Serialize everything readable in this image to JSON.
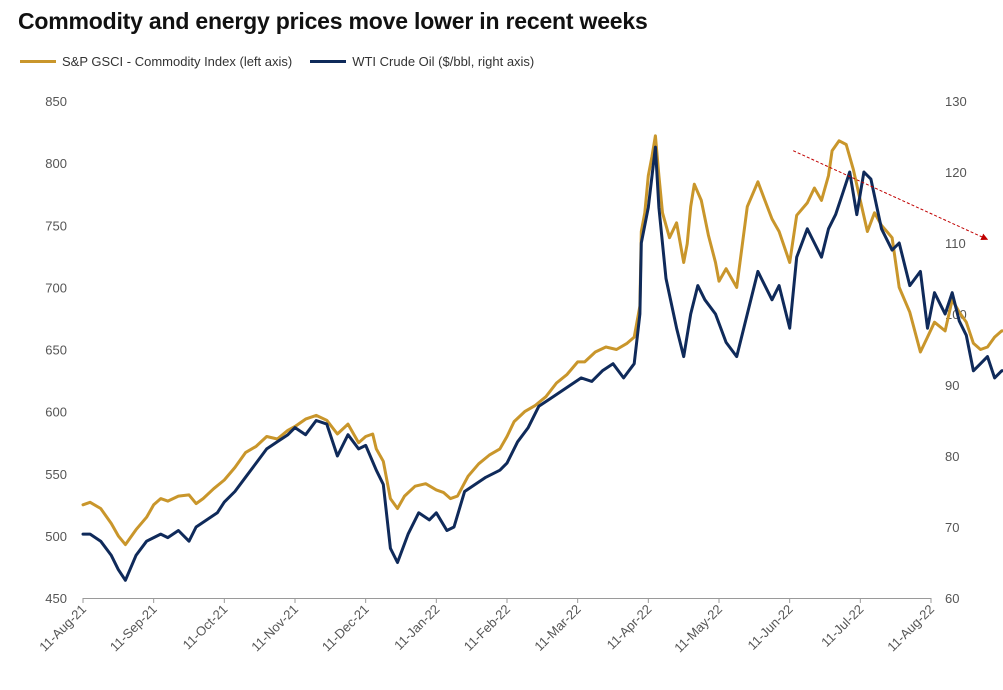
{
  "chart_data": {
    "type": "line",
    "title": "Commodity and  energy prices move lower in recent weeks",
    "x_ticks": [
      "11-Aug-21",
      "11-Sep-21",
      "11-Oct-21",
      "11-Nov-21",
      "11-Dec-21",
      "11-Jan-22",
      "11-Feb-22",
      "11-Mar-22",
      "11-Apr-22",
      "11-May-22",
      "11-Jun-22",
      "11-Jul-22",
      "11-Aug-22"
    ],
    "y_left": {
      "min": 450,
      "max": 850,
      "ticks": [
        450,
        500,
        550,
        600,
        650,
        700,
        750,
        800,
        850
      ]
    },
    "y_right": {
      "min": 60,
      "max": 130,
      "ticks": [
        60,
        70,
        80,
        90,
        100,
        110,
        120,
        130
      ]
    },
    "grid": false,
    "legend_position": "top-left",
    "x_unit": "month index (0 = 11-Aug-21)",
    "series": [
      {
        "name": "S&P GSCI - Commodity Index (left axis)",
        "axis": "left",
        "color": "#C9962B",
        "points": [
          [
            0,
            525
          ],
          [
            0.1,
            527
          ],
          [
            0.25,
            522
          ],
          [
            0.4,
            510
          ],
          [
            0.5,
            500
          ],
          [
            0.6,
            493
          ],
          [
            0.75,
            505
          ],
          [
            0.9,
            515
          ],
          [
            1.0,
            525
          ],
          [
            1.1,
            530
          ],
          [
            1.2,
            528
          ],
          [
            1.35,
            532
          ],
          [
            1.5,
            533
          ],
          [
            1.6,
            526
          ],
          [
            1.7,
            530
          ],
          [
            1.85,
            538
          ],
          [
            2.0,
            545
          ],
          [
            2.15,
            555
          ],
          [
            2.3,
            567
          ],
          [
            2.45,
            572
          ],
          [
            2.6,
            580
          ],
          [
            2.75,
            578
          ],
          [
            2.9,
            585
          ],
          [
            3.0,
            588
          ],
          [
            3.15,
            594
          ],
          [
            3.3,
            597
          ],
          [
            3.45,
            593
          ],
          [
            3.6,
            582
          ],
          [
            3.75,
            590
          ],
          [
            3.9,
            575
          ],
          [
            4.0,
            580
          ],
          [
            4.1,
            582
          ],
          [
            4.15,
            570
          ],
          [
            4.25,
            560
          ],
          [
            4.35,
            530
          ],
          [
            4.45,
            522
          ],
          [
            4.55,
            532
          ],
          [
            4.7,
            540
          ],
          [
            4.85,
            542
          ],
          [
            5.0,
            537
          ],
          [
            5.1,
            535
          ],
          [
            5.2,
            530
          ],
          [
            5.3,
            532
          ],
          [
            5.45,
            548
          ],
          [
            5.6,
            558
          ],
          [
            5.75,
            565
          ],
          [
            5.9,
            570
          ],
          [
            6.0,
            580
          ],
          [
            6.1,
            592
          ],
          [
            6.25,
            600
          ],
          [
            6.4,
            605
          ],
          [
            6.55,
            612
          ],
          [
            6.7,
            623
          ],
          [
            6.85,
            630
          ],
          [
            7.0,
            640
          ],
          [
            7.1,
            640
          ],
          [
            7.25,
            648
          ],
          [
            7.4,
            652
          ],
          [
            7.55,
            650
          ],
          [
            7.7,
            655
          ],
          [
            7.8,
            660
          ],
          [
            7.88,
            685
          ],
          [
            7.9,
            745
          ],
          [
            7.95,
            760
          ],
          [
            8.0,
            790
          ],
          [
            8.05,
            805
          ],
          [
            8.1,
            822
          ],
          [
            8.15,
            790
          ],
          [
            8.2,
            760
          ],
          [
            8.3,
            740
          ],
          [
            8.4,
            752
          ],
          [
            8.5,
            720
          ],
          [
            8.55,
            735
          ],
          [
            8.6,
            765
          ],
          [
            8.65,
            783
          ],
          [
            8.75,
            770
          ],
          [
            8.85,
            742
          ],
          [
            8.95,
            720
          ],
          [
            9.0,
            705
          ],
          [
            9.1,
            715
          ],
          [
            9.25,
            700
          ],
          [
            9.4,
            765
          ],
          [
            9.55,
            785
          ],
          [
            9.65,
            770
          ],
          [
            9.75,
            755
          ],
          [
            9.85,
            745
          ],
          [
            10.0,
            720
          ],
          [
            10.1,
            758
          ],
          [
            10.25,
            768
          ],
          [
            10.35,
            780
          ],
          [
            10.45,
            770
          ],
          [
            10.55,
            790
          ],
          [
            10.6,
            810
          ],
          [
            10.7,
            818
          ],
          [
            10.8,
            815
          ],
          [
            10.9,
            795
          ],
          [
            11.0,
            770
          ],
          [
            11.1,
            745
          ],
          [
            11.2,
            760
          ],
          [
            11.3,
            750
          ],
          [
            11.45,
            740
          ],
          [
            11.55,
            700
          ],
          [
            11.7,
            680
          ],
          [
            11.85,
            648
          ],
          [
            11.95,
            660
          ],
          [
            12.05,
            672
          ],
          [
            12.2,
            665
          ],
          [
            12.3,
            690
          ],
          [
            12.4,
            680
          ],
          [
            12.5,
            672
          ],
          [
            12.6,
            655
          ],
          [
            12.7,
            650
          ],
          [
            12.8,
            652
          ],
          [
            12.9,
            660
          ],
          [
            13.0,
            665
          ],
          [
            13.05,
            665
          ]
        ]
      },
      {
        "name": "WTI Crude Oil ($/bbl, right axis)",
        "axis": "right",
        "color": "#0F2A5A",
        "points": [
          [
            0,
            69
          ],
          [
            0.1,
            69
          ],
          [
            0.25,
            68
          ],
          [
            0.4,
            66
          ],
          [
            0.5,
            64
          ],
          [
            0.6,
            62.5
          ],
          [
            0.75,
            66
          ],
          [
            0.9,
            68
          ],
          [
            1.0,
            68.5
          ],
          [
            1.1,
            69
          ],
          [
            1.2,
            68.5
          ],
          [
            1.35,
            69.5
          ],
          [
            1.5,
            68
          ],
          [
            1.6,
            70
          ],
          [
            1.75,
            71
          ],
          [
            1.9,
            72
          ],
          [
            2.0,
            73.5
          ],
          [
            2.15,
            75
          ],
          [
            2.3,
            77
          ],
          [
            2.45,
            79
          ],
          [
            2.6,
            81
          ],
          [
            2.75,
            82
          ],
          [
            2.9,
            83
          ],
          [
            3.0,
            84
          ],
          [
            3.15,
            83
          ],
          [
            3.3,
            85
          ],
          [
            3.45,
            84.5
          ],
          [
            3.6,
            80
          ],
          [
            3.75,
            83
          ],
          [
            3.9,
            81
          ],
          [
            4.0,
            81.5
          ],
          [
            4.15,
            78
          ],
          [
            4.25,
            76
          ],
          [
            4.35,
            67
          ],
          [
            4.45,
            65
          ],
          [
            4.6,
            69
          ],
          [
            4.75,
            72
          ],
          [
            4.9,
            71
          ],
          [
            5.0,
            72
          ],
          [
            5.15,
            69.5
          ],
          [
            5.25,
            70
          ],
          [
            5.4,
            75
          ],
          [
            5.55,
            76
          ],
          [
            5.7,
            77
          ],
          [
            5.9,
            78
          ],
          [
            6.0,
            79
          ],
          [
            6.15,
            82
          ],
          [
            6.3,
            84
          ],
          [
            6.45,
            87
          ],
          [
            6.6,
            88
          ],
          [
            6.75,
            89
          ],
          [
            6.9,
            90
          ],
          [
            7.05,
            91
          ],
          [
            7.2,
            90.5
          ],
          [
            7.35,
            92
          ],
          [
            7.5,
            93
          ],
          [
            7.65,
            91
          ],
          [
            7.8,
            93
          ],
          [
            7.88,
            100
          ],
          [
            7.9,
            110
          ],
          [
            8.0,
            115
          ],
          [
            8.1,
            123.5
          ],
          [
            8.15,
            115
          ],
          [
            8.25,
            105
          ],
          [
            8.4,
            98
          ],
          [
            8.5,
            94
          ],
          [
            8.6,
            100
          ],
          [
            8.7,
            104
          ],
          [
            8.8,
            102
          ],
          [
            8.95,
            100
          ],
          [
            9.1,
            96
          ],
          [
            9.25,
            94
          ],
          [
            9.4,
            100
          ],
          [
            9.55,
            106
          ],
          [
            9.65,
            104
          ],
          [
            9.75,
            102
          ],
          [
            9.85,
            104
          ],
          [
            10.0,
            98
          ],
          [
            10.1,
            108
          ],
          [
            10.25,
            112
          ],
          [
            10.35,
            110
          ],
          [
            10.45,
            108
          ],
          [
            10.55,
            112
          ],
          [
            10.65,
            114
          ],
          [
            10.75,
            117
          ],
          [
            10.85,
            120
          ],
          [
            10.95,
            114
          ],
          [
            11.05,
            120
          ],
          [
            11.15,
            119
          ],
          [
            11.3,
            112
          ],
          [
            11.45,
            109
          ],
          [
            11.55,
            110
          ],
          [
            11.7,
            104
          ],
          [
            11.85,
            106
          ],
          [
            11.95,
            98
          ],
          [
            12.05,
            103
          ],
          [
            12.2,
            100
          ],
          [
            12.3,
            103
          ],
          [
            12.4,
            99
          ],
          [
            12.5,
            97
          ],
          [
            12.6,
            92
          ],
          [
            12.7,
            93
          ],
          [
            12.8,
            94
          ],
          [
            12.9,
            91
          ],
          [
            13.0,
            92
          ],
          [
            13.05,
            92
          ]
        ]
      }
    ],
    "annotations": [
      {
        "type": "arrow",
        "color": "#C00000",
        "from": [
          10.05,
          123
        ],
        "to": [
          12.8,
          110.5
        ],
        "axis": "right"
      }
    ]
  }
}
